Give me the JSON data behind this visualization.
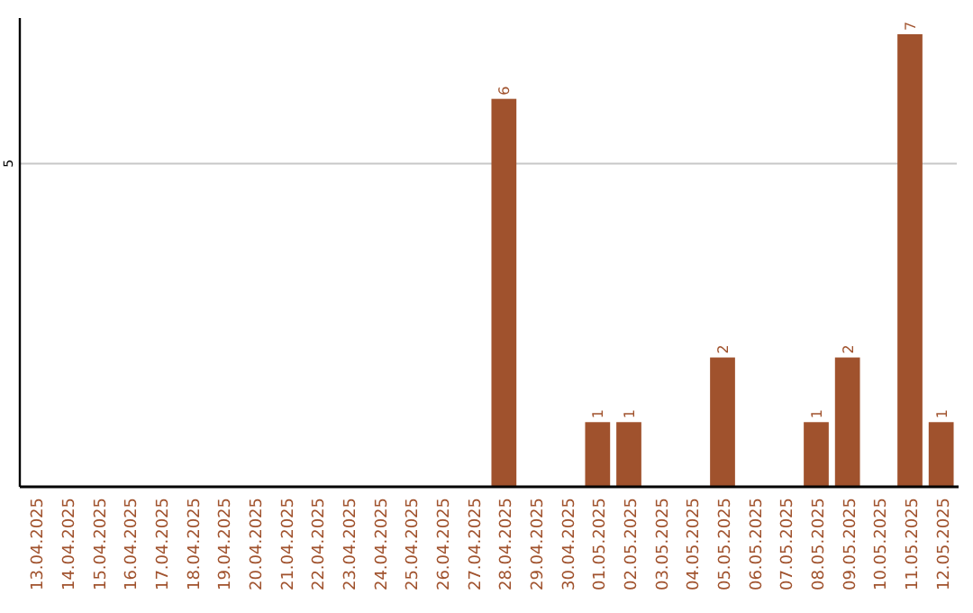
{
  "chart_data": {
    "type": "bar",
    "categories": [
      "13.04.2025",
      "14.04.2025",
      "15.04.2025",
      "16.04.2025",
      "17.04.2025",
      "18.04.2025",
      "19.04.2025",
      "20.04.2025",
      "21.04.2025",
      "22.04.2025",
      "23.04.2025",
      "24.04.2025",
      "25.04.2025",
      "26.04.2025",
      "27.04.2025",
      "28.04.2025",
      "29.04.2025",
      "30.04.2025",
      "01.05.2025",
      "02.05.2025",
      "03.05.2025",
      "04.05.2025",
      "05.05.2025",
      "06.05.2025",
      "07.05.2025",
      "08.05.2025",
      "09.05.2025",
      "10.05.2025",
      "11.05.2025",
      "12.05.2025"
    ],
    "values": [
      null,
      null,
      null,
      null,
      null,
      null,
      null,
      null,
      null,
      null,
      null,
      null,
      null,
      null,
      null,
      6,
      null,
      null,
      1,
      1,
      null,
      null,
      2,
      null,
      null,
      1,
      2,
      null,
      7,
      1
    ],
    "value_labels": [
      null,
      null,
      null,
      null,
      null,
      null,
      null,
      null,
      null,
      null,
      null,
      null,
      null,
      null,
      null,
      "6",
      null,
      null,
      "1",
      "1",
      null,
      null,
      "2",
      null,
      null,
      "1",
      "2",
      null,
      "7",
      "1"
    ],
    "color": "#a0522d",
    "ylim": [
      0,
      7.25
    ],
    "yticks": [
      5
    ],
    "grid": "y"
  }
}
